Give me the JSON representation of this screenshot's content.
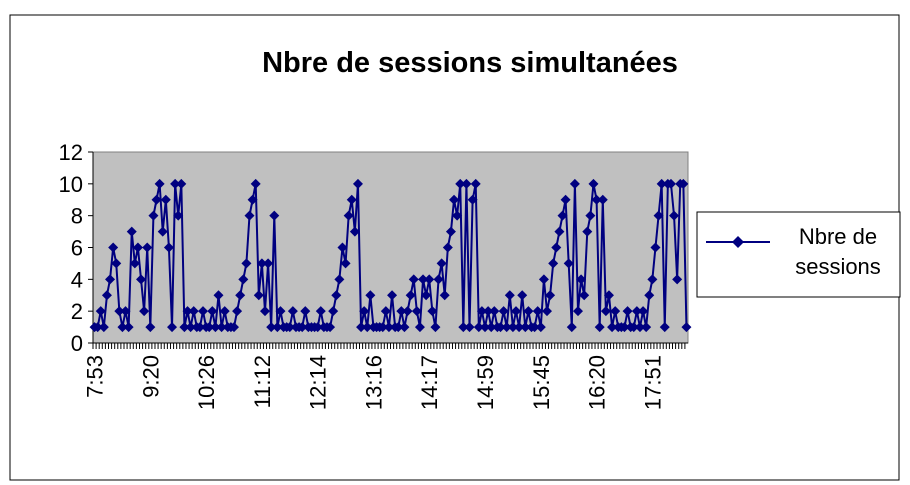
{
  "chart_data": {
    "type": "line",
    "title": "Nbre de sessions simultanées",
    "categories": [
      "7:53",
      null,
      null,
      null,
      null,
      null,
      null,
      null,
      null,
      null,
      null,
      null,
      null,
      null,
      null,
      null,
      null,
      null,
      "9:20",
      null,
      null,
      null,
      null,
      null,
      null,
      null,
      null,
      null,
      null,
      null,
      null,
      null,
      null,
      null,
      null,
      null,
      "10:26",
      null,
      null,
      null,
      null,
      null,
      null,
      null,
      null,
      null,
      null,
      null,
      null,
      null,
      null,
      null,
      null,
      null,
      "11:12",
      null,
      null,
      null,
      null,
      null,
      null,
      null,
      null,
      null,
      null,
      null,
      null,
      null,
      null,
      null,
      null,
      null,
      "12:14",
      null,
      null,
      null,
      null,
      null,
      null,
      null,
      null,
      null,
      null,
      null,
      null,
      null,
      null,
      null,
      null,
      null,
      "13:16",
      null,
      null,
      null,
      null,
      null,
      null,
      null,
      null,
      null,
      null,
      null,
      null,
      null,
      null,
      null,
      null,
      null,
      "14:17",
      null,
      null,
      null,
      null,
      null,
      null,
      null,
      null,
      null,
      null,
      null,
      null,
      null,
      null,
      null,
      null,
      null,
      "14:59",
      null,
      null,
      null,
      null,
      null,
      null,
      null,
      null,
      null,
      null,
      null,
      null,
      null,
      null,
      null,
      null,
      null,
      "15:45",
      null,
      null,
      null,
      null,
      null,
      null,
      null,
      null,
      null,
      null,
      null,
      null,
      null,
      null,
      null,
      null,
      null,
      "16:20",
      null,
      null,
      null,
      null,
      null,
      null,
      null,
      null,
      null,
      null,
      null,
      null,
      null,
      null,
      null,
      null,
      null,
      "17:51",
      null,
      null,
      null,
      null,
      null,
      null,
      null,
      null,
      null,
      null,
      null
    ],
    "series": [
      {
        "name": "Nbre de sessions",
        "color": "#000080",
        "values": [
          1,
          1,
          2,
          1,
          3,
          4,
          6,
          5,
          2,
          1,
          2,
          1,
          7,
          5,
          6,
          4,
          2,
          6,
          1,
          8,
          9,
          10,
          7,
          9,
          6,
          1,
          10,
          8,
          10,
          1,
          2,
          1,
          2,
          1,
          1,
          2,
          1,
          1,
          2,
          1,
          3,
          1,
          2,
          1,
          1,
          1,
          2,
          3,
          4,
          5,
          8,
          9,
          10,
          3,
          5,
          2,
          5,
          1,
          8,
          1,
          2,
          1,
          1,
          1,
          2,
          1,
          1,
          1,
          2,
          1,
          1,
          1,
          1,
          2,
          1,
          1,
          1,
          2,
          3,
          4,
          6,
          5,
          8,
          9,
          7,
          10,
          1,
          2,
          1,
          3,
          1,
          1,
          1,
          1,
          2,
          1,
          3,
          1,
          1,
          2,
          1,
          2,
          3,
          4,
          2,
          1,
          4,
          3,
          4,
          2,
          1,
          4,
          5,
          3,
          6,
          7,
          9,
          8,
          10,
          1,
          10,
          1,
          9,
          10,
          1,
          2,
          1,
          2,
          1,
          2,
          1,
          1,
          2,
          1,
          3,
          1,
          2,
          1,
          3,
          1,
          2,
          1,
          1,
          2,
          1,
          4,
          2,
          3,
          5,
          6,
          7,
          8,
          9,
          5,
          1,
          10,
          2,
          4,
          3,
          7,
          8,
          10,
          9,
          1,
          9,
          2,
          3,
          1,
          2,
          1,
          1,
          1,
          2,
          1,
          1,
          2,
          1,
          2,
          1,
          3,
          4,
          6,
          8,
          10,
          1,
          10,
          10,
          8,
          4,
          10,
          10,
          1
        ]
      }
    ],
    "ylim": [
      0,
      12
    ],
    "yticks": [
      0,
      2,
      4,
      6,
      8,
      10,
      12
    ],
    "grid": false,
    "legend": "right",
    "plot_background": "#c0c0c0"
  }
}
